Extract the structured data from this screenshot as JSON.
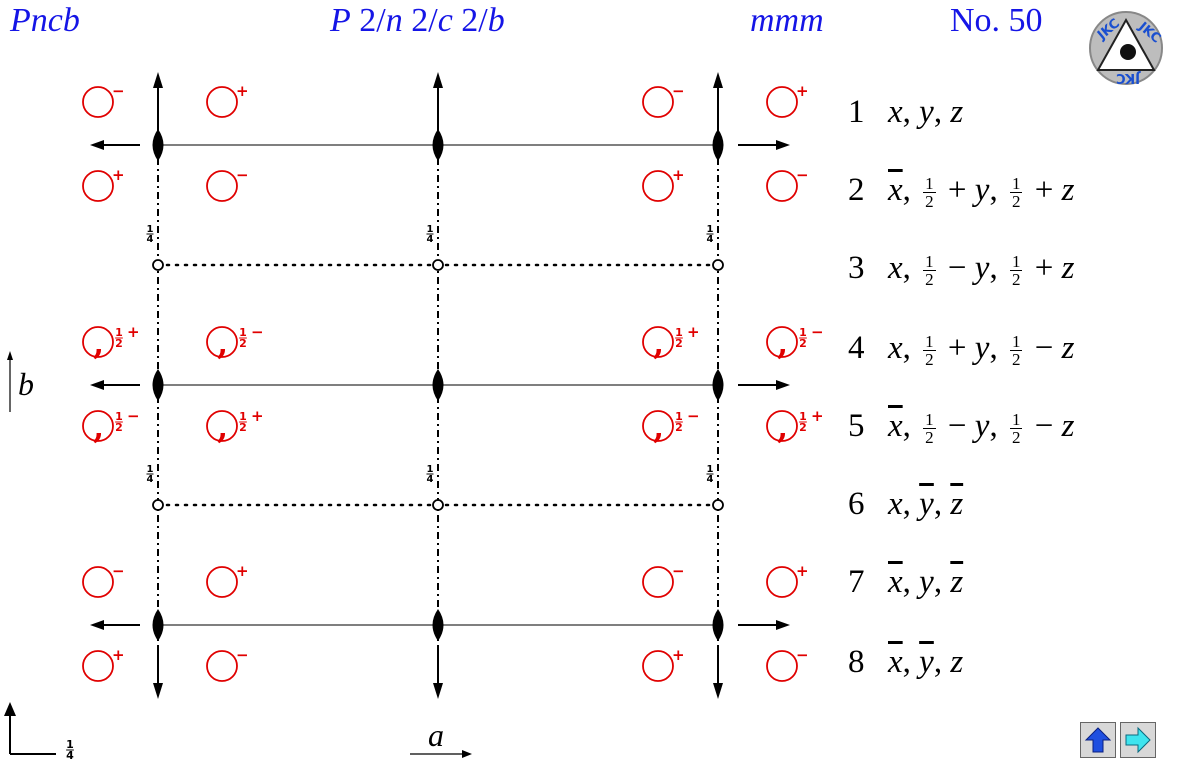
{
  "header": {
    "short_symbol": "Pncb",
    "full_symbol_parts": [
      "P",
      " 2/",
      "n",
      " 2/",
      "c",
      " 2/",
      "b"
    ],
    "point_group": "mmm",
    "number": "No. 50"
  },
  "logo": {
    "text": "JKC"
  },
  "axes": {
    "b_label": "b",
    "a_label": "a",
    "corner_height": "1/4"
  },
  "height_label": "1/4",
  "symbols": {
    "plus": "+",
    "minus": "−",
    "half": "1/2",
    "comma": ","
  },
  "coordinates": [
    {
      "num": "1",
      "parts": [
        {
          "t": "x"
        },
        {
          "t": ", "
        },
        {
          "t": "y"
        },
        {
          "t": ", "
        },
        {
          "t": "z"
        }
      ],
      "blue": true
    },
    {
      "num": "2",
      "parts": [
        {
          "t": "x",
          "bar": true
        },
        {
          "t": ", "
        },
        {
          "f": "1/2"
        },
        {
          "t": " + "
        },
        {
          "t": "y"
        },
        {
          "t": ", "
        },
        {
          "f": "1/2"
        },
        {
          "t": " + "
        },
        {
          "t": "z"
        }
      ]
    },
    {
      "num": "3",
      "parts": [
        {
          "t": "x"
        },
        {
          "t": ", "
        },
        {
          "f": "1/2"
        },
        {
          "t": " − "
        },
        {
          "t": "y"
        },
        {
          "t": ", "
        },
        {
          "f": "1/2"
        },
        {
          "t": " + "
        },
        {
          "t": "z"
        }
      ]
    },
    {
      "num": "4",
      "parts": [
        {
          "t": "x"
        },
        {
          "t": ", "
        },
        {
          "f": "1/2"
        },
        {
          "t": " + "
        },
        {
          "t": "y"
        },
        {
          "t": ", "
        },
        {
          "f": "1/2"
        },
        {
          "t": " − "
        },
        {
          "t": "z"
        }
      ]
    },
    {
      "num": "5",
      "parts": [
        {
          "t": "x",
          "bar": true
        },
        {
          "t": ", "
        },
        {
          "f": "1/2"
        },
        {
          "t": " − "
        },
        {
          "t": "y"
        },
        {
          "t": ", "
        },
        {
          "f": "1/2"
        },
        {
          "t": " − "
        },
        {
          "t": "z"
        }
      ]
    },
    {
      "num": "6",
      "parts": [
        {
          "t": "x"
        },
        {
          "t": ", "
        },
        {
          "t": "y",
          "bar": true
        },
        {
          "t": ", "
        },
        {
          "t": "z",
          "bar": true
        }
      ]
    },
    {
      "num": "7",
      "parts": [
        {
          "t": "x",
          "bar": true
        },
        {
          "t": ", "
        },
        {
          "t": "y"
        },
        {
          "t": ", "
        },
        {
          "t": "z",
          "bar": true
        }
      ]
    },
    {
      "num": "8",
      "parts": [
        {
          "t": "x",
          "bar": true
        },
        {
          "t": ", "
        },
        {
          "t": "y",
          "bar": true
        },
        {
          "t": ", "
        },
        {
          "t": "z"
        }
      ]
    }
  ],
  "nav": {
    "up_icon": "up-arrow-icon",
    "next_icon": "right-arrow-icon"
  },
  "colors": {
    "title": "#1515e6",
    "position": "#e00000",
    "lines": "#000000"
  }
}
